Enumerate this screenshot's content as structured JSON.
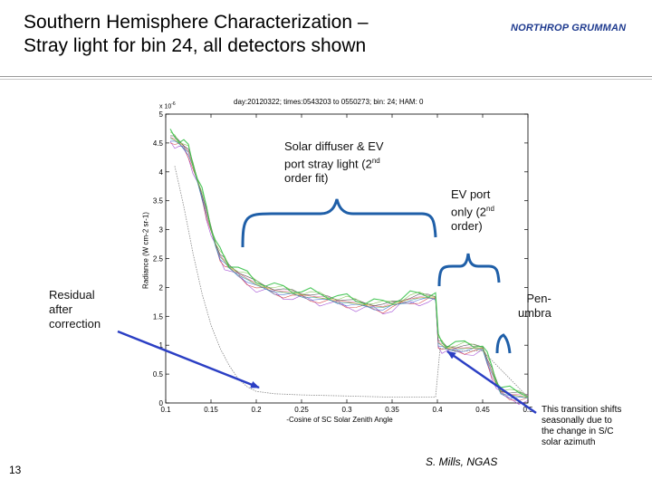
{
  "slide": {
    "title_line1": "Southern Hemisphere Characterization –",
    "title_line2": "Stray light for bin 24, all detectors shown",
    "logo_text": "NORTHROP GRUMMAN",
    "page_number": "13",
    "credit": "S. Mills, NGAS"
  },
  "annotations": {
    "solar_line1": "Solar diffuser & EV",
    "solar_line2_pre": "port stray light (2",
    "solar_line2_sup": "nd",
    "solar_line3": "order fit)",
    "ev_line1": "EV port",
    "ev_line2_pre": "only (2",
    "ev_line2_sup": "nd",
    "ev_line3": "order)",
    "residual_line1": "Residual",
    "residual_line2": "after",
    "residual_line3": "correction",
    "penumbra_line1": "Pen-",
    "penumbra_line2": "umbra",
    "transition_line1": "This transition shifts",
    "transition_line2": "seasonally due to",
    "transition_line3": "the change in S/C",
    "transition_line4": "solar azimuth"
  },
  "colors": {
    "bracket": "#1f5fa8",
    "arrow": "#2b3fc4",
    "series_green": "#39c24a",
    "residual": "#888888"
  },
  "chart_data": {
    "type": "line",
    "title": "day:20120322; times:0543203 to 0550273; bin: 24; HAM: 0",
    "xlabel": "-Cosine of SC Solar Zenith Angle",
    "ylabel": "Radiance (W cm-2 sr-1)",
    "y_multiplier_label": "x 10",
    "y_multiplier_exp": "-6",
    "xlim": [
      0.1,
      0.5
    ],
    "ylim": [
      0,
      5
    ],
    "x_ticks": [
      "0.1",
      "0.15",
      "0.2",
      "0.25",
      "0.3",
      "0.35",
      "0.4",
      "0.45",
      "0.5"
    ],
    "y_ticks": [
      "0",
      "0.5",
      "1",
      "1.5",
      "2",
      "2.5",
      "3",
      "3.5",
      "4",
      "4.5",
      "5"
    ],
    "series": [
      {
        "role": "stray-light",
        "x": [
          0.105,
          0.11,
          0.115,
          0.12,
          0.125,
          0.13,
          0.135,
          0.14,
          0.145,
          0.15,
          0.155,
          0.16,
          0.165,
          0.17,
          0.18,
          0.19,
          0.2,
          0.21,
          0.22,
          0.23,
          0.24,
          0.25,
          0.26,
          0.27,
          0.28,
          0.29,
          0.3,
          0.31,
          0.32,
          0.33,
          0.34,
          0.35,
          0.36,
          0.37,
          0.38,
          0.39,
          0.398,
          0.401,
          0.405,
          0.41,
          0.42,
          0.43,
          0.44,
          0.45,
          0.455,
          0.46,
          0.465,
          0.47,
          0.48,
          0.49,
          0.5
        ],
        "values": [
          4.6,
          4.55,
          4.5,
          4.45,
          4.35,
          4.1,
          3.85,
          3.6,
          3.3,
          3.0,
          2.75,
          2.55,
          2.45,
          2.35,
          2.25,
          2.15,
          2.05,
          2.0,
          1.95,
          1.92,
          1.9,
          1.87,
          1.85,
          1.82,
          1.8,
          1.77,
          1.75,
          1.72,
          1.7,
          1.68,
          1.66,
          1.7,
          1.75,
          1.8,
          1.82,
          1.83,
          1.83,
          1.05,
          1.0,
          0.95,
          0.95,
          0.95,
          0.95,
          0.95,
          0.75,
          0.55,
          0.35,
          0.2,
          0.15,
          0.12,
          0.1
        ]
      },
      {
        "role": "residual",
        "x": [
          0.11,
          0.12,
          0.13,
          0.14,
          0.15,
          0.16,
          0.17,
          0.18,
          0.19,
          0.2,
          0.22,
          0.25,
          0.3,
          0.35,
          0.39,
          0.398,
          0.403,
          0.42,
          0.45,
          0.5
        ],
        "values": [
          4.1,
          3.4,
          2.6,
          1.9,
          1.35,
          0.95,
          0.65,
          0.42,
          0.28,
          0.2,
          0.16,
          0.14,
          0.12,
          0.1,
          0.1,
          0.1,
          0.95,
          0.9,
          0.9,
          0.1
        ]
      }
    ]
  }
}
